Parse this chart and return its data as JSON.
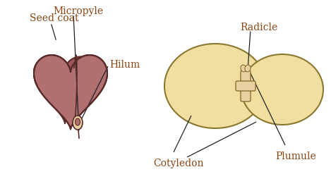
{
  "bg_color": "#ffffff",
  "seed_color": "#b07070",
  "seed_dark_color": "#9a5a5a",
  "seed_edge_color": "#5a2a2a",
  "seed_fold_color": "#c08080",
  "cotyledon_color": "#f0dfa0",
  "cotyledon_edge_color": "#8a7830",
  "embryo_color": "#e8d0a0",
  "embryo_edge_color": "#8a7030",
  "label_color": "#8B4513",
  "line_color": "#222222",
  "labels": {
    "seed_coat": "Seed coat",
    "hilum": "Hilum",
    "micropyle": "Micropyle",
    "cotyledon": "Cotyledon",
    "plumule": "Plumule",
    "radicle": "Radicle"
  },
  "figsize": [
    4.69,
    2.54
  ],
  "dpi": 100
}
